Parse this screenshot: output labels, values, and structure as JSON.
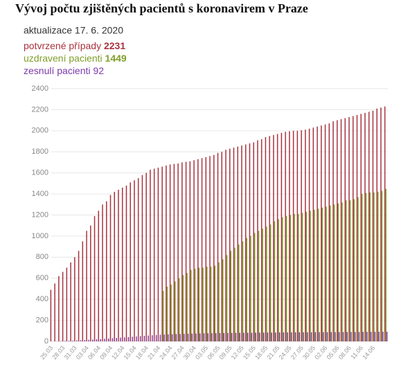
{
  "chart_data": {
    "type": "bar",
    "title": "Vývoj počtu zjištěných pacientů s koronavirem v Praze",
    "subtitle": "aktualizace 17. 6. 2020",
    "categories": [
      "25.03",
      null,
      null,
      "28.03",
      null,
      null,
      "31.03",
      null,
      null,
      "03.04",
      null,
      null,
      "06.04",
      null,
      null,
      "09.04",
      null,
      null,
      "12.04",
      null,
      null,
      "15.04",
      null,
      null,
      "18.04",
      null,
      null,
      "21.04",
      null,
      null,
      "24.04",
      null,
      null,
      "27.04",
      null,
      null,
      "30.04",
      null,
      null,
      "03.05",
      null,
      null,
      "06.05",
      null,
      null,
      "09.05",
      null,
      null,
      "12.05",
      null,
      null,
      "15.05",
      null,
      null,
      "18.05",
      null,
      null,
      "21.05",
      null,
      null,
      "24.05",
      null,
      null,
      "27.05",
      null,
      null,
      "30.05",
      null,
      null,
      "02.06",
      null,
      null,
      "05.06",
      null,
      null,
      "08.06",
      null,
      null,
      "11.06",
      null,
      null,
      "14.06",
      null,
      null,
      null
    ],
    "series": [
      {
        "name": "potvrzené případy",
        "color": "#a8323e",
        "values": [
          490,
          550,
          620,
          660,
          700,
          750,
          800,
          860,
          950,
          1050,
          1100,
          1190,
          1240,
          1300,
          1330,
          1390,
          1420,
          1440,
          1460,
          1480,
          1510,
          1530,
          1550,
          1580,
          1600,
          1630,
          1640,
          1650,
          1660,
          1670,
          1680,
          1685,
          1690,
          1700,
          1705,
          1710,
          1720,
          1730,
          1740,
          1750,
          1760,
          1770,
          1790,
          1800,
          1820,
          1830,
          1840,
          1850,
          1860,
          1870,
          1880,
          1890,
          1910,
          1920,
          1940,
          1950,
          1960,
          1970,
          1980,
          1990,
          1995,
          2000,
          2000,
          2005,
          2010,
          2020,
          2030,
          2040,
          2050,
          2060,
          2070,
          2090,
          2100,
          2110,
          2120,
          2130,
          2140,
          2150,
          2160,
          2170,
          2180,
          2190,
          2210,
          2220,
          2231
        ]
      },
      {
        "name": "uzdravení pacienti",
        "color": "#7f9e2a",
        "values": [
          null,
          null,
          null,
          null,
          null,
          null,
          null,
          null,
          null,
          null,
          null,
          null,
          null,
          null,
          null,
          null,
          null,
          null,
          null,
          null,
          null,
          null,
          null,
          null,
          null,
          null,
          null,
          null,
          480,
          520,
          540,
          570,
          600,
          630,
          650,
          680,
          690,
          700,
          700,
          710,
          710,
          720,
          750,
          780,
          820,
          860,
          890,
          920,
          950,
          980,
          1000,
          1030,
          1050,
          1070,
          1090,
          1110,
          1140,
          1160,
          1180,
          1190,
          1200,
          1210,
          1210,
          1220,
          1230,
          1240,
          1250,
          1260,
          1270,
          1280,
          1290,
          1300,
          1310,
          1320,
          1340,
          1340,
          1350,
          1370,
          1400,
          1410,
          1415,
          1415,
          1420,
          1430,
          1449
        ]
      },
      {
        "name": "zesnulí pacienti",
        "color": "#7b3aa8",
        "values": [
          2,
          3,
          4,
          5,
          6,
          7,
          9,
          11,
          13,
          15,
          17,
          20,
          22,
          25,
          28,
          30,
          33,
          36,
          38,
          41,
          44,
          47,
          50,
          53,
          56,
          58,
          61,
          63,
          65,
          67,
          69,
          70,
          71,
          72,
          73,
          74,
          75,
          76,
          77,
          77,
          78,
          78,
          79,
          79,
          80,
          80,
          81,
          81,
          82,
          82,
          82,
          83,
          83,
          83,
          84,
          84,
          84,
          85,
          85,
          85,
          86,
          86,
          86,
          87,
          87,
          87,
          88,
          88,
          88,
          88,
          89,
          89,
          89,
          89,
          90,
          90,
          90,
          90,
          91,
          91,
          91,
          91,
          92,
          92,
          92
        ]
      }
    ],
    "ylim": [
      0,
      2400
    ],
    "yticks": [
      0,
      200,
      400,
      600,
      800,
      1000,
      1200,
      1400,
      1600,
      1800,
      2000,
      2200,
      2400
    ],
    "grid": true
  }
}
